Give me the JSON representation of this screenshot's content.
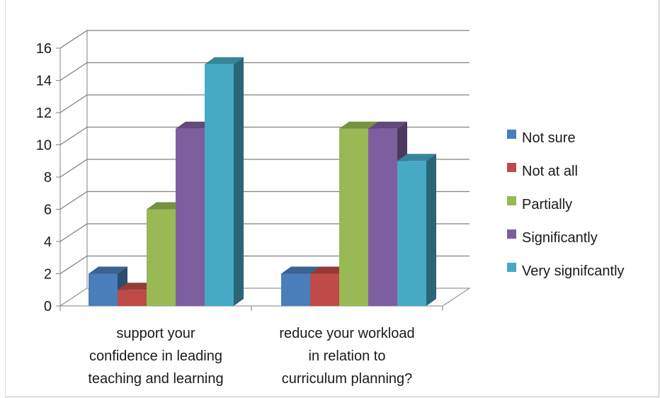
{
  "chart_data": {
    "type": "bar",
    "style": "3d-clustered-column",
    "categories": [
      [
        "support your",
        "confidence in leading",
        "teaching and learning"
      ],
      [
        "reduce your workload",
        "in relation to",
        "curriculum planning?"
      ]
    ],
    "series": [
      {
        "name": "Not sure",
        "color": "#4a7ebb",
        "values": [
          2,
          2
        ]
      },
      {
        "name": "Not at all",
        "color": "#be4b48",
        "values": [
          1,
          2
        ]
      },
      {
        "name": "Partially",
        "color": "#98b954",
        "values": [
          6,
          11
        ]
      },
      {
        "name": "Significantly",
        "color": "#7d5fa0",
        "values": [
          11,
          11
        ]
      },
      {
        "name": "Very signifcantly",
        "color": "#46aac5",
        "values": [
          15,
          9
        ]
      }
    ],
    "ylim": [
      0,
      16
    ],
    "yticks": [
      "0",
      "2",
      "4",
      "6",
      "8",
      "10",
      "12",
      "14",
      "16"
    ],
    "grid": true,
    "legend_position": "right"
  }
}
